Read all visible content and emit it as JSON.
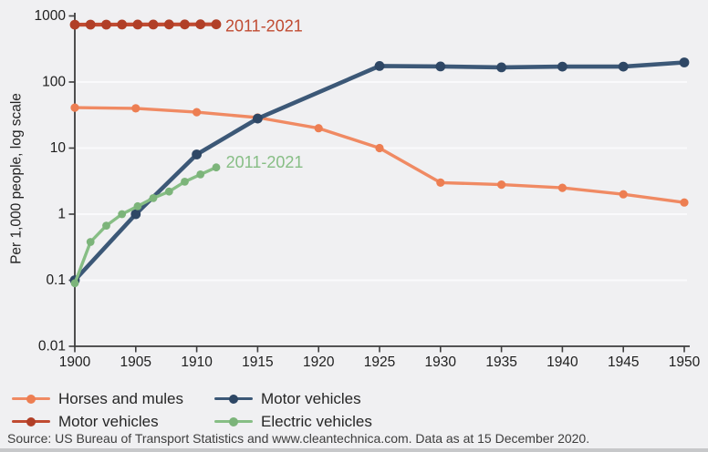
{
  "chart_data": {
    "type": "line",
    "title": "",
    "ylabel": "Per 1,000 people, log scale",
    "y_axis": {
      "scale": "log",
      "ticks": [
        "1000",
        "100",
        "10",
        "1",
        "0.1",
        "0.01"
      ],
      "range": [
        0.01,
        1000
      ]
    },
    "x_axis": {
      "ticks": [
        "1900",
        "1905",
        "1910",
        "1915",
        "1920",
        "1925",
        "1930",
        "1935",
        "1940",
        "1945",
        "1950"
      ],
      "range": [
        1900,
        1950
      ]
    },
    "gridlines": [
      100,
      10,
      1,
      0.1
    ],
    "legend_position": "bottom",
    "series": [
      {
        "name": "Horses and mules",
        "color": "#f08a63",
        "dot_color": "#ed7e52",
        "x": [
          1900,
          1905,
          1910,
          1915,
          1920,
          1925,
          1930,
          1935,
          1940,
          1945,
          1950
        ],
        "values": [
          41,
          40,
          35,
          29,
          20,
          10,
          3.0,
          2.8,
          2.5,
          2.0,
          1.5
        ]
      },
      {
        "name": "Motor vehicles",
        "color": "#3c5877",
        "dot_color": "#2e4765",
        "x": [
          1900,
          1905,
          1910,
          1915,
          1925,
          1930,
          1935,
          1940,
          1945,
          1950
        ],
        "values": [
          0.1,
          1.0,
          8,
          28,
          175,
          172,
          167,
          171,
          171,
          198
        ]
      },
      {
        "name": "Motor vehicles",
        "period": "2011-2021",
        "color": "#c04b32",
        "dot_color": "#b13f27",
        "x": [
          1900,
          1901.29,
          1902.58,
          1903.87,
          1905.16,
          1906.44,
          1907.73,
          1909.02,
          1910.31,
          1911.6
        ],
        "values": [
          738,
          739,
          740,
          741,
          742,
          743,
          744,
          745,
          746,
          747
        ]
      },
      {
        "name": "Electric vehicles",
        "period": "2011-2021",
        "color": "#87be85",
        "dot_color": "#7cb47a",
        "x": [
          1900,
          1901.29,
          1902.58,
          1903.87,
          1905.16,
          1906.44,
          1907.73,
          1909.02,
          1910.31,
          1911.6
        ],
        "values": [
          0.09,
          0.38,
          0.67,
          1.0,
          1.32,
          1.75,
          2.2,
          3.1,
          4.0,
          5.1
        ]
      }
    ],
    "annotations": [
      {
        "text": "2011-2021",
        "color": "#c04b32",
        "x": 1912.35,
        "value": 700
      },
      {
        "text": "2011-2021",
        "color": "#87be85",
        "x": 1912.4,
        "value": 6.1
      }
    ]
  },
  "legend": {
    "items": [
      {
        "label": "Horses and mules",
        "color": "#f08a63",
        "dot": "#ed7e52"
      },
      {
        "label": "Motor vehicles",
        "color": "#3c5877",
        "dot": "#2e4765"
      },
      {
        "label": "Motor vehicles",
        "color": "#c04b32",
        "dot": "#b13f27"
      },
      {
        "label": "Electric vehicles",
        "color": "#87be85",
        "dot": "#7cb47a"
      }
    ]
  },
  "source": "Source: US Bureau of Transport Statistics and www.cleantechnica.com. Data as at 15 December 2020."
}
